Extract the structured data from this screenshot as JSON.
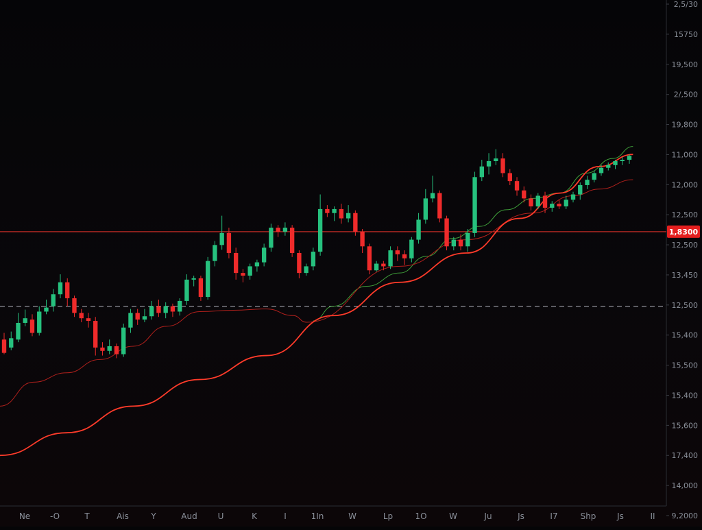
{
  "colors": {
    "background": "#050507",
    "up": "#26c17e",
    "down": "#ef2b2b",
    "ma_fast": "#3f9f3a",
    "ma_mid": "#b0201c",
    "ma_slow": "#ff3b2a",
    "hline_solid": "#e0322a",
    "hline_dashed": "#c8ccd4",
    "axis_text": "#8a8f99",
    "price_tag": "#e41f1f"
  },
  "chart_data": {
    "type": "line",
    "title": "",
    "xlabel": "",
    "ylabel": "",
    "grid": false,
    "y_axis_side": "right",
    "y_tick_labels": [
      "2,5/30",
      "15750",
      "19,500",
      "2/,500",
      "19,800",
      "11,000",
      "12,000",
      "12,500",
      "12,500",
      "13,450",
      "12,500",
      "15,400",
      "15,500",
      "15,400",
      "15,600",
      "17,400",
      "14,000",
      "9,2000"
    ],
    "x_tick_labels": [
      "Ne",
      "-O",
      "T",
      "Ais",
      "Y",
      "Aud",
      "U",
      "K",
      "I",
      "1In",
      "W",
      "Lp",
      "1O",
      "W",
      "Ju",
      "Js",
      "I7",
      "Shp",
      "Js",
      "II"
    ],
    "ylim": [
      0,
      760
    ],
    "candles": {
      "values_units": "chart units (0 = bottom, 760 = top)",
      "ohlc": [
        [
          250,
          230,
          260,
          228
        ],
        [
          238,
          252,
          262,
          234
        ],
        [
          250,
          275,
          290,
          246
        ],
        [
          275,
          282,
          295,
          270
        ],
        [
          280,
          260,
          288,
          255
        ],
        [
          260,
          292,
          300,
          256
        ],
        [
          292,
          298,
          310,
          288
        ],
        [
          300,
          318,
          326,
          292
        ],
        [
          318,
          336,
          348,
          312
        ],
        [
          336,
          312,
          342,
          300
        ],
        [
          312,
          290,
          316,
          284
        ],
        [
          290,
          282,
          296,
          276
        ],
        [
          282,
          278,
          290,
          268
        ],
        [
          278,
          238,
          284,
          226
        ],
        [
          238,
          233,
          246,
          226
        ],
        [
          233,
          240,
          250,
          228
        ],
        [
          240,
          228,
          244,
          222
        ],
        [
          228,
          268,
          274,
          224
        ],
        [
          268,
          290,
          296,
          260
        ],
        [
          290,
          280,
          296,
          272
        ],
        [
          280,
          285,
          296,
          276
        ],
        [
          285,
          300,
          308,
          280
        ],
        [
          300,
          290,
          310,
          284
        ],
        [
          290,
          300,
          306,
          282
        ],
        [
          300,
          292,
          304,
          284
        ],
        [
          292,
          308,
          312,
          286
        ],
        [
          308,
          340,
          348,
          302
        ],
        [
          340,
          342,
          346,
          330
        ],
        [
          342,
          314,
          346,
          308
        ],
        [
          314,
          368,
          374,
          310
        ],
        [
          368,
          392,
          398,
          360
        ],
        [
          392,
          410,
          436,
          385
        ],
        [
          410,
          380,
          418,
          372
        ],
        [
          380,
          350,
          388,
          340
        ],
        [
          350,
          346,
          356,
          336
        ],
        [
          346,
          360,
          364,
          340
        ],
        [
          360,
          366,
          370,
          352
        ],
        [
          366,
          388,
          394,
          360
        ],
        [
          388,
          418,
          424,
          382
        ],
        [
          418,
          412,
          422,
          404
        ],
        [
          412,
          418,
          426,
          406
        ],
        [
          418,
          380,
          422,
          374
        ],
        [
          380,
          350,
          384,
          342
        ],
        [
          350,
          360,
          364,
          346
        ],
        [
          360,
          382,
          388,
          354
        ],
        [
          382,
          446,
          468,
          376
        ],
        [
          446,
          440,
          452,
          434
        ],
        [
          440,
          446,
          450,
          428
        ],
        [
          446,
          432,
          454,
          424
        ],
        [
          432,
          440,
          452,
          426
        ],
        [
          440,
          412,
          444,
          406
        ],
        [
          412,
          390,
          416,
          380
        ],
        [
          390,
          354,
          394,
          348
        ],
        [
          354,
          364,
          368,
          352
        ],
        [
          364,
          360,
          368,
          354
        ],
        [
          360,
          384,
          390,
          356
        ],
        [
          384,
          378,
          390,
          368
        ],
        [
          378,
          372,
          384,
          362
        ],
        [
          372,
          400,
          404,
          366
        ],
        [
          400,
          430,
          440,
          394
        ],
        [
          430,
          462,
          476,
          424
        ],
        [
          462,
          470,
          496,
          456
        ],
        [
          470,
          432,
          474,
          426
        ],
        [
          432,
          390,
          436,
          384
        ],
        [
          390,
          400,
          404,
          384
        ],
        [
          400,
          390,
          408,
          384
        ],
        [
          390,
          410,
          416,
          382
        ],
        [
          410,
          494,
          502,
          404
        ],
        [
          494,
          510,
          520,
          488
        ],
        [
          510,
          518,
          530,
          498
        ],
        [
          518,
          522,
          536,
          512
        ],
        [
          522,
          500,
          530,
          494
        ],
        [
          500,
          488,
          506,
          482
        ],
        [
          488,
          474,
          494,
          466
        ],
        [
          474,
          462,
          480,
          456
        ],
        [
          462,
          450,
          468,
          444
        ],
        [
          450,
          466,
          470,
          446
        ],
        [
          466,
          448,
          472,
          440
        ],
        [
          448,
          454,
          458,
          442
        ],
        [
          454,
          450,
          460,
          446
        ],
        [
          450,
          460,
          466,
          446
        ],
        [
          460,
          468,
          472,
          456
        ],
        [
          468,
          482,
          486,
          460
        ],
        [
          482,
          490,
          496,
          476
        ],
        [
          490,
          500,
          504,
          486
        ],
        [
          500,
          508,
          512,
          496
        ],
        [
          508,
          512,
          516,
          504
        ],
        [
          512,
          518,
          520,
          506
        ],
        [
          518,
          520,
          524,
          512
        ],
        [
          520,
          526,
          528,
          514
        ]
      ]
    },
    "series": [
      {
        "name": "",
        "role": "ma_fast",
        "x": [
          0.47,
          0.5,
          0.55,
          0.6,
          0.64,
          0.68,
          0.72,
          0.76,
          0.8,
          0.84,
          0.88,
          0.92,
          0.95
        ],
        "y": [
          278,
          300,
          330,
          350,
          375,
          402,
          420,
          445,
          462,
          470,
          500,
          522,
          540
        ]
      },
      {
        "name": "",
        "role": "ma_mid",
        "x": [
          0.0,
          0.05,
          0.1,
          0.15,
          0.2,
          0.25,
          0.3,
          0.35,
          0.4,
          0.44,
          0.46,
          0.6,
          0.7,
          0.8,
          0.86,
          0.9,
          0.95
        ],
        "y": [
          150,
          186,
          200,
          220,
          240,
          270,
          292,
          294,
          296,
          286,
          276,
          360,
          400,
          440,
          466,
          476,
          490
        ]
      },
      {
        "name": "",
        "role": "ma_slow",
        "x": [
          0.0,
          0.1,
          0.2,
          0.3,
          0.4,
          0.5,
          0.6,
          0.7,
          0.78,
          0.84,
          0.9,
          0.95
        ],
        "y": [
          76,
          110,
          150,
          190,
          226,
          286,
          336,
          380,
          432,
          470,
          510,
          528
        ]
      }
    ],
    "hlines": [
      {
        "role": "solid",
        "value": 412,
        "label": "1,8300"
      },
      {
        "role": "dashed",
        "value": 300,
        "label": ""
      }
    ]
  }
}
